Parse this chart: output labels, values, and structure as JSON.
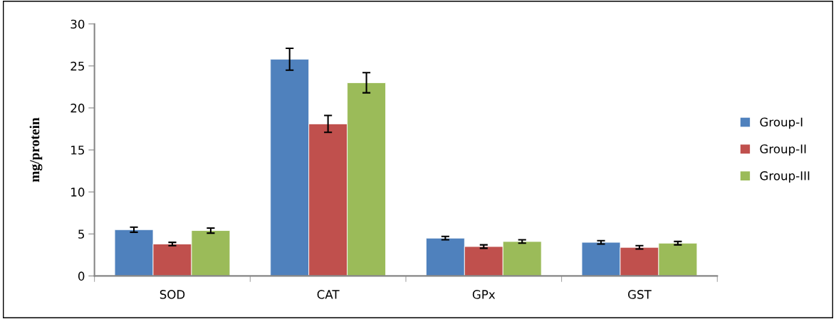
{
  "chart_data": {
    "type": "bar",
    "ylabel": "mg/protein",
    "categories": [
      "SOD",
      "CAT",
      "GPx",
      "GST"
    ],
    "series": [
      {
        "name": "Group-I",
        "color": "#4f81bd",
        "values": [
          5.5,
          25.8,
          4.5,
          4.0
        ],
        "errors": [
          0.3,
          1.3,
          0.2,
          0.2
        ]
      },
      {
        "name": "Group-II",
        "color": "#c0504d",
        "values": [
          3.8,
          18.1,
          3.5,
          3.4
        ],
        "errors": [
          0.2,
          1.0,
          0.2,
          0.2
        ]
      },
      {
        "name": "Group-III",
        "color": "#9bbb59",
        "values": [
          5.4,
          23.0,
          4.1,
          3.9
        ],
        "errors": [
          0.3,
          1.2,
          0.2,
          0.2
        ]
      }
    ],
    "ylim": [
      0,
      30
    ],
    "yticks": [
      0,
      5,
      10,
      15,
      20,
      25,
      30
    ],
    "grid": false,
    "legend": "right"
  }
}
